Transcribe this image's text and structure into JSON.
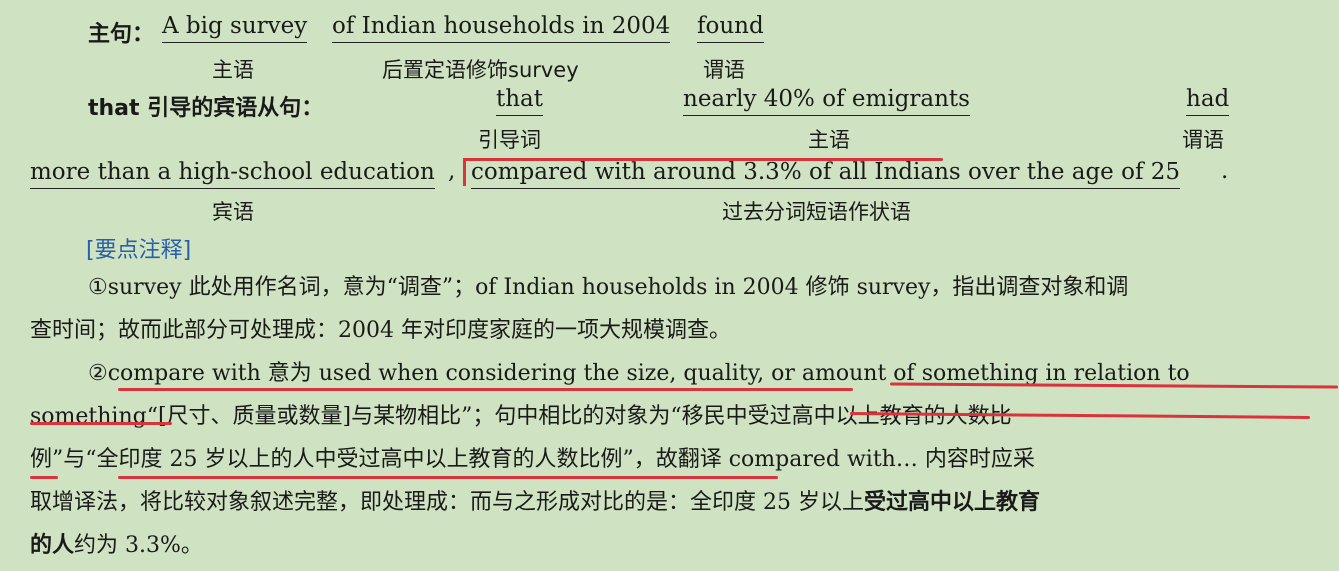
{
  "main_clause": {
    "label": "主句：",
    "subject": "A big survey",
    "modifier": "of Indian households in 2004",
    "verb": "found",
    "subject_tag": "主语",
    "modifier_tag": "后置定语修饰survey",
    "verb_tag": "谓语"
  },
  "that_clause": {
    "label": "that 引导的宾语从句：",
    "intro": "that",
    "subject": "nearly 40% of emigrants",
    "verb": "had",
    "intro_tag": "引导词",
    "subject_tag": "主语",
    "verb_tag": "谓语"
  },
  "line3": {
    "object": "more than a high-school education",
    "comma": ",",
    "adverbial": "compared with around 3.3% of all Indians over the age of 25",
    "period": ".",
    "object_tag": "宾语",
    "adverbial_tag": "过去分词短语作状语"
  },
  "notes_heading": "[要点注释]",
  "note1": {
    "line1": "①survey 此处用作名词，意为“调查”；of Indian households in 2004 修饰 survey，指出调查对象和调",
    "line2": "查时间；故而此部分可处理成：2004 年对印度家庭的一项大规模调查。"
  },
  "note2": {
    "line1": "②compare with 意为 used when considering the size, quality, or amount of something in relation to",
    "line2": "something“[尺寸、质量或数量]与某物相比”；句中相比的对象为“移民中受过高中以上教育的人数比",
    "line3": "例”与“全印度 25 岁以上的人中受过高中以上教育的人数比例”，故翻译 compared with… 内容时应采",
    "line4a": "取增译法，将比较对象叙述完整，即处理成：而与之形成对比的是：全印度 25 岁以上",
    "line4b": "受过高中以上教育",
    "line5a": "的人",
    "line5b": "约为 3.3%。"
  }
}
